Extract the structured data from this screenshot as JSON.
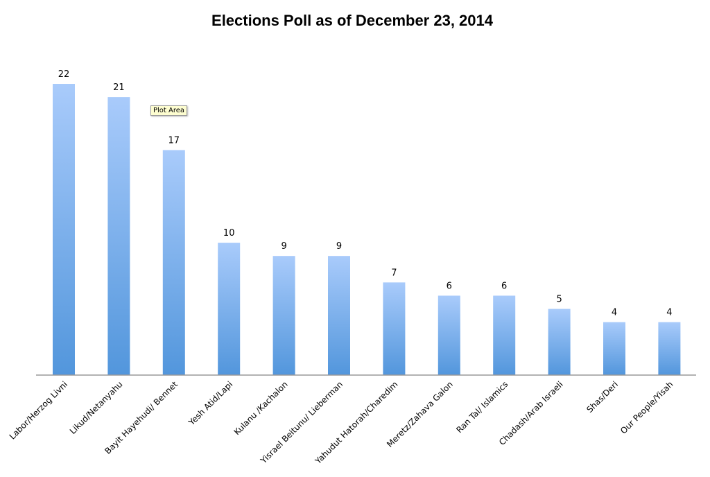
{
  "chart_data": {
    "type": "bar",
    "title": "Elections Poll as of December 23, 2014",
    "categories": [
      "Labor/Herzog Livni",
      "Likud/Netanyahu",
      "Bayit Hayehudi/ Bennet",
      "Yesh Atid/Lapi",
      "Kulanu /Kachalon",
      "Yisrael Beitunu/ Lieberman",
      "Yahudut Hatorah/Charedim",
      "Meretz/Zahava Galon",
      "Ran Tal/ Islamics",
      "Chadash/Arab Israeli",
      "Shas/Deri",
      "Our People/Yisah"
    ],
    "values": [
      22,
      21,
      17,
      10,
      9,
      9,
      7,
      6,
      6,
      5,
      4,
      4
    ],
    "xlabel": "",
    "ylabel": "",
    "ylim": [
      0,
      22
    ],
    "grid": false,
    "legend": "none",
    "bar_color_top": "#a9cbfb",
    "bar_color_bottom": "#5296dc"
  },
  "tooltip": "Plot Area"
}
